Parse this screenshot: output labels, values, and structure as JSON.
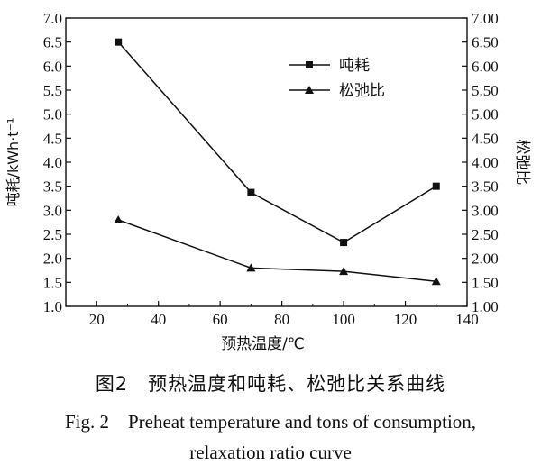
{
  "chart_data": {
    "type": "line",
    "xlabel": "预热温度/℃",
    "ylabel_left": "吨耗/kWh·t⁻¹",
    "ylabel_right": "松弛比",
    "xlim": [
      10,
      140
    ],
    "ylim": [
      1.0,
      7.0
    ],
    "x_ticks": [
      "20",
      "40",
      "60",
      "80",
      "100",
      "120",
      "140"
    ],
    "y_ticks_left": [
      "1.0",
      "1.5",
      "2.0",
      "2.5",
      "3.0",
      "3.5",
      "4.0",
      "4.5",
      "5.0",
      "5.5",
      "6.0",
      "6.5",
      "7.0"
    ],
    "y_ticks_right": [
      "1.00",
      "1.50",
      "2.00",
      "2.50",
      "3.00",
      "3.50",
      "4.00",
      "4.50",
      "5.00",
      "5.50",
      "6.00",
      "6.50",
      "7.00"
    ],
    "legend_position": "top-right",
    "series": [
      {
        "name": "吨耗",
        "marker": "square",
        "x": [
          27,
          70,
          100,
          130
        ],
        "values": [
          6.5,
          3.37,
          2.33,
          3.5
        ]
      },
      {
        "name": "松弛比",
        "marker": "triangle",
        "x": [
          27,
          70,
          100,
          130
        ],
        "values": [
          2.8,
          1.8,
          1.73,
          1.52
        ]
      }
    ]
  },
  "caption": {
    "cn": "图2　预热温度和吨耗、松弛比关系曲线",
    "en_line1": "Fig. 2　Preheat temperature and tons of consumption,",
    "en_line2": "relaxation ratio curve"
  }
}
